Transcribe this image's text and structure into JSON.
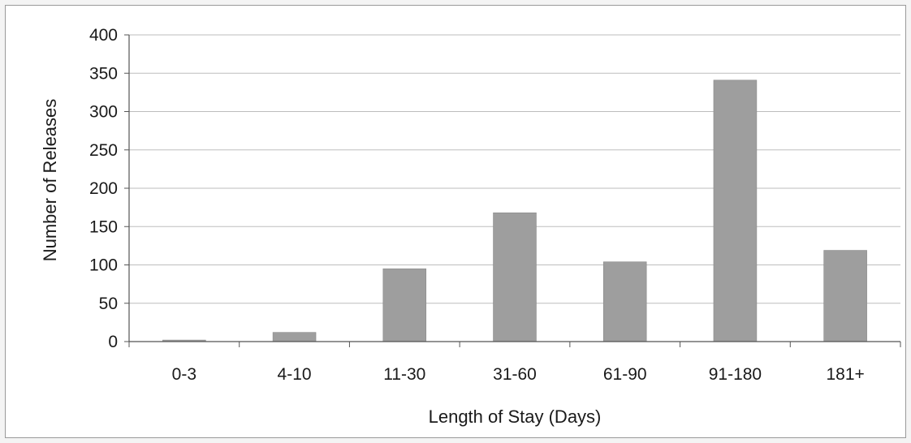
{
  "colors": {
    "bar": "#9e9e9e",
    "grid": "#bdbdbd",
    "axis": "#555555",
    "background": "#ffffff"
  },
  "chart_data": {
    "type": "bar",
    "title": "",
    "xlabel": "Length of Stay (Days)",
    "ylabel": "Number of Releases",
    "categories": [
      "0-3",
      "4-10",
      "11-30",
      "31-60",
      "61-90",
      "91-180",
      "181+"
    ],
    "values": [
      2,
      12,
      95,
      168,
      104,
      341,
      119
    ],
    "ylim": [
      0,
      400
    ],
    "yticks": [
      0,
      50,
      100,
      150,
      200,
      250,
      300,
      350,
      400
    ],
    "grid": true,
    "legend": "none"
  }
}
